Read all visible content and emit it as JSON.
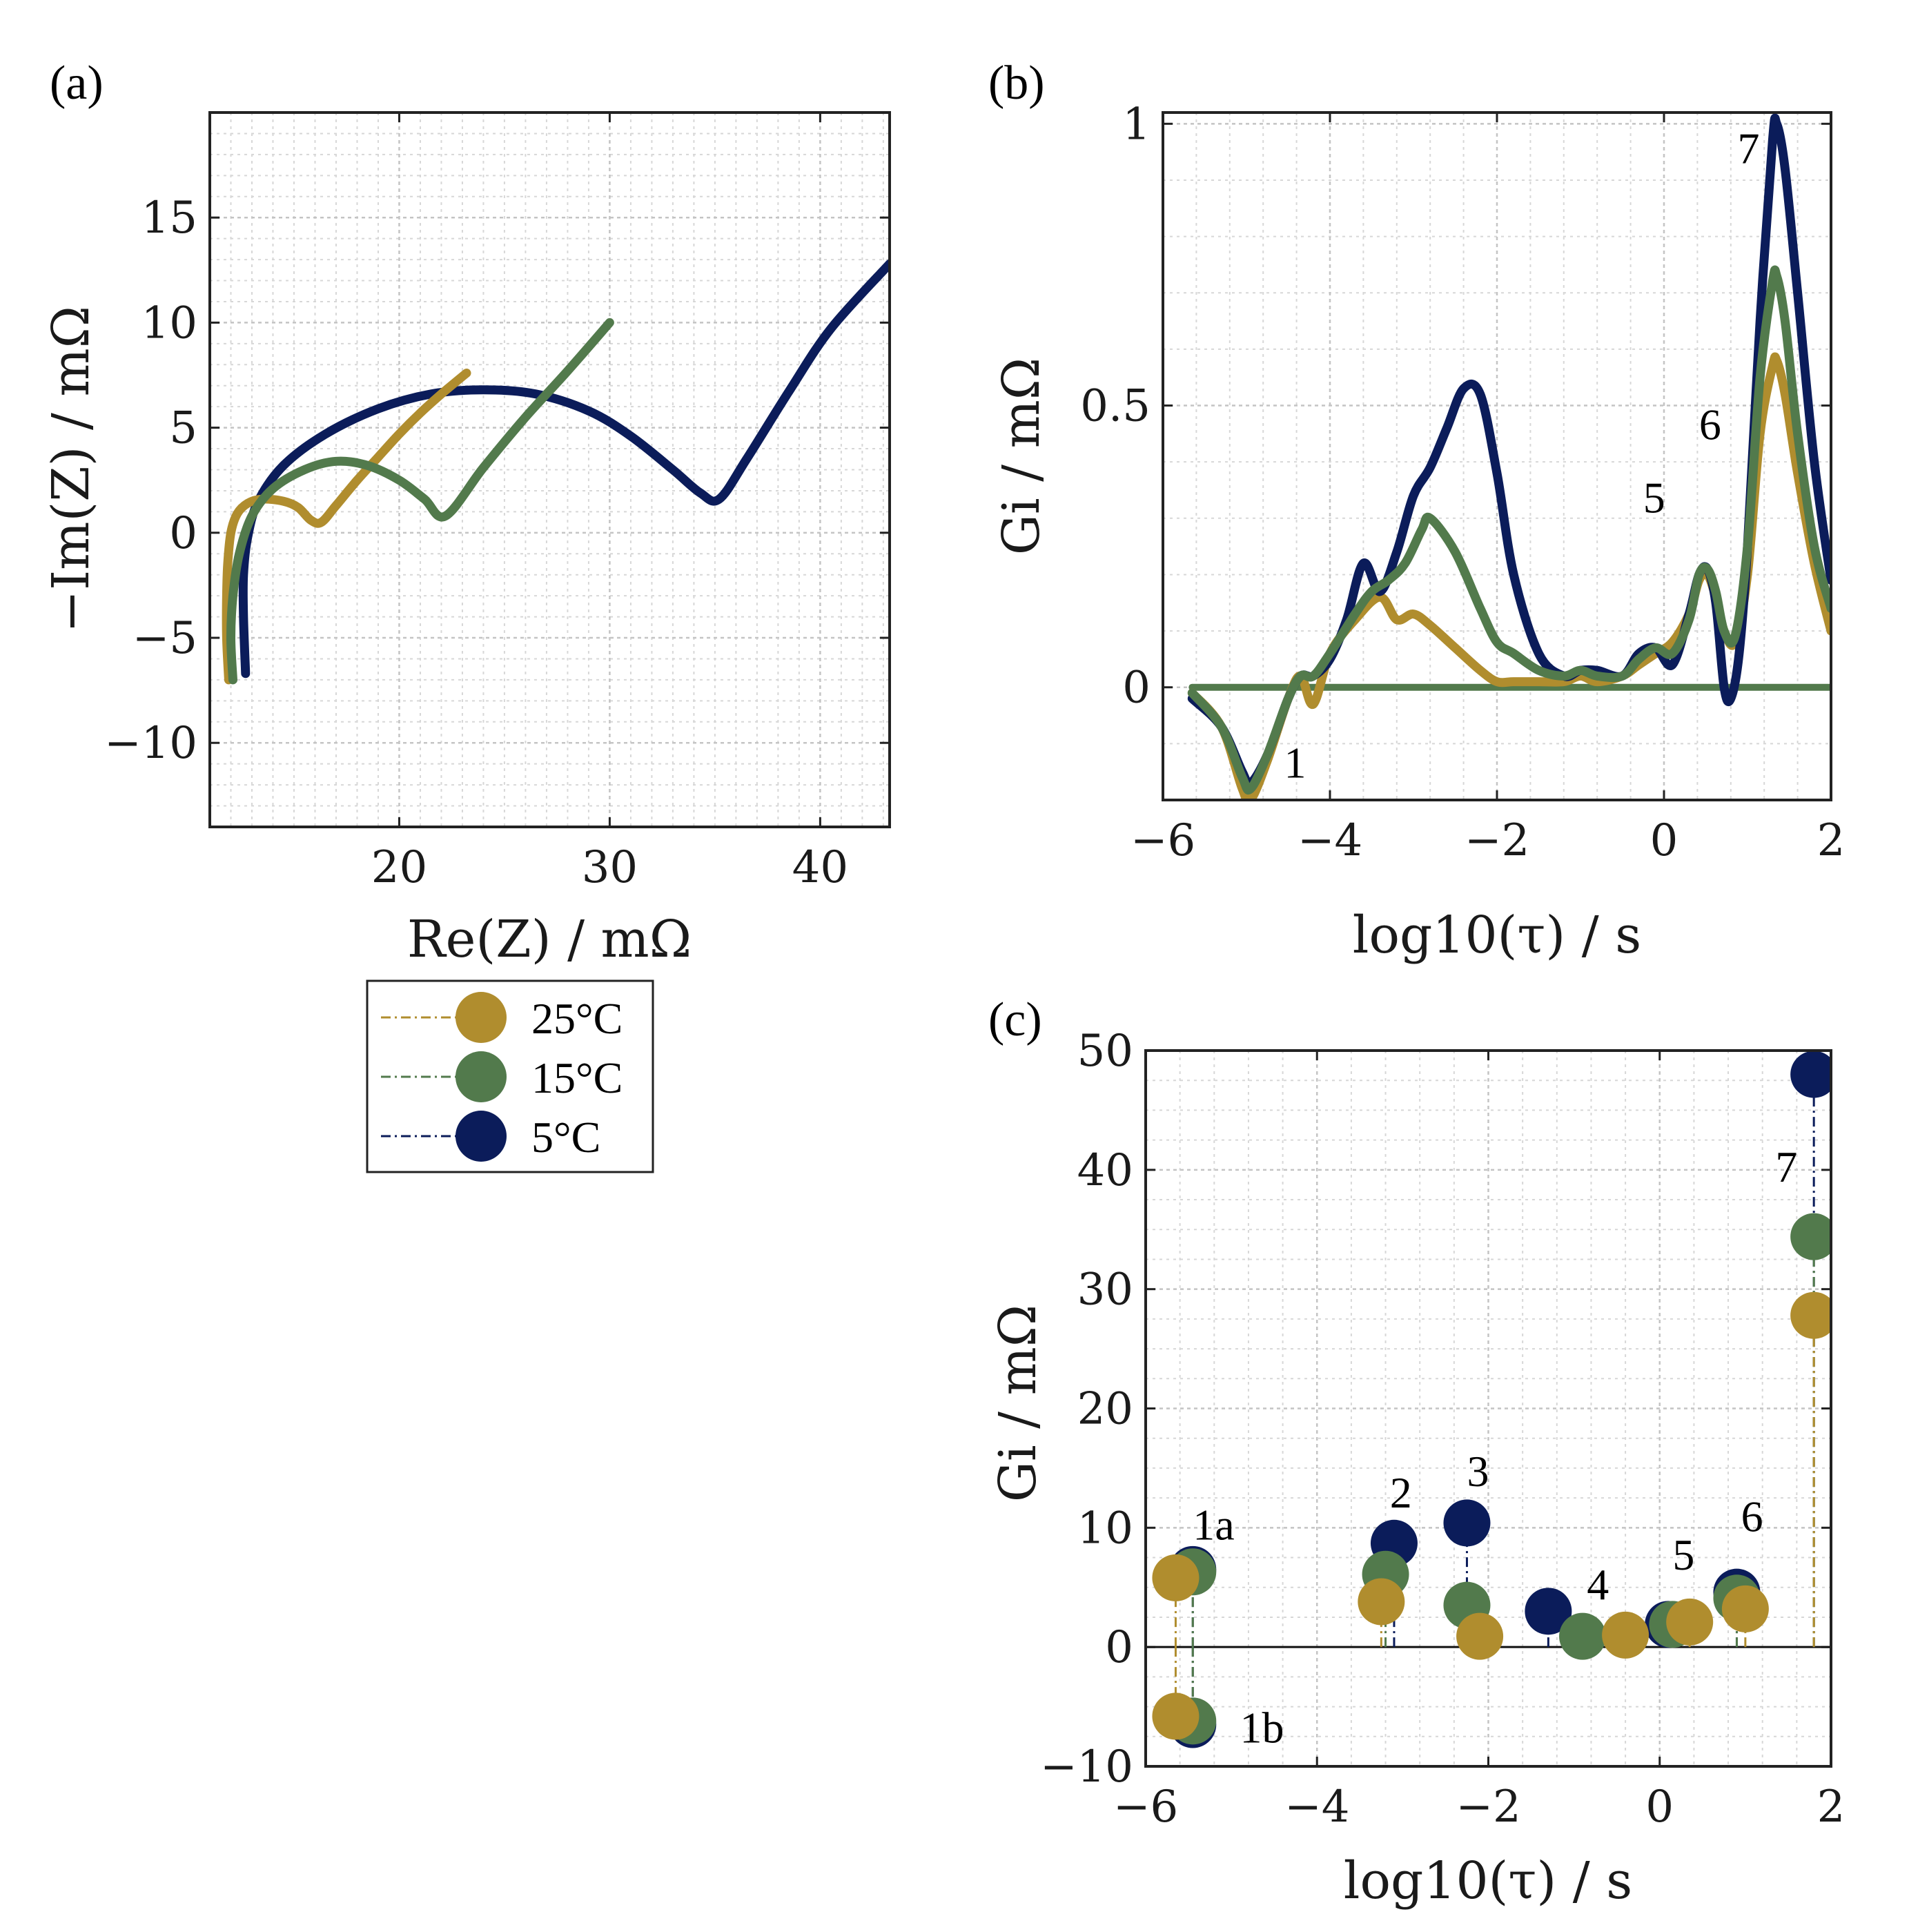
{
  "colors": {
    "t25": "#B08D2E",
    "t15": "#527A4C",
    "t5": "#0B1C5A"
  },
  "legend": {
    "items": [
      {
        "key": "t25",
        "label": "25°C"
      },
      {
        "key": "t15",
        "label": "15°C"
      },
      {
        "key": "t5",
        "label": "5°C"
      }
    ]
  },
  "chart_data": [
    {
      "id": "a",
      "panel_label": "(a)",
      "type": "line",
      "xlabel": "Re(Z) / mΩ",
      "ylabel": "−Im(Z) / mΩ",
      "xlim": [
        11,
        43.3
      ],
      "ylim": [
        -14,
        20
      ],
      "xticks": [
        20,
        30,
        40
      ],
      "xticklabels": [
        "20",
        "30",
        "40"
      ],
      "yticks": [
        -10,
        -5,
        0,
        5,
        10,
        15
      ],
      "yticklabels": [
        "−10",
        "−5",
        "0",
        "5",
        "10",
        "15"
      ],
      "grid": true,
      "series": [
        {
          "name": "25°C",
          "color_key": "t25",
          "x": [
            11.9,
            11.8,
            11.8,
            11.85,
            12.0,
            12.3,
            12.8,
            13.5,
            14.5,
            15.2,
            15.8,
            16.3,
            17.0,
            18.0,
            19.0,
            20.0,
            21.0,
            22.0,
            23.2
          ],
          "y": [
            -7.0,
            -5.0,
            -3.0,
            -1.5,
            0.0,
            0.9,
            1.4,
            1.6,
            1.5,
            1.2,
            0.6,
            0.5,
            1.3,
            2.5,
            3.6,
            4.7,
            5.7,
            6.6,
            7.6
          ]
        },
        {
          "name": "15°C",
          "color_key": "t15",
          "x": [
            12.1,
            12.0,
            12.1,
            12.4,
            13.0,
            14.0,
            15.5,
            17.0,
            18.5,
            20.0,
            21.2,
            22.2,
            24.0,
            26.0,
            28.0,
            30.0
          ],
          "y": [
            -7.0,
            -5.0,
            -3.0,
            -1.0,
            0.8,
            2.1,
            3.0,
            3.4,
            3.2,
            2.5,
            1.6,
            0.8,
            3.1,
            5.5,
            7.7,
            10.0
          ]
        },
        {
          "name": "5°C",
          "color_key": "t5",
          "x": [
            12.7,
            12.6,
            12.6,
            12.8,
            13.3,
            14.5,
            16.5,
            19.0,
            21.5,
            24.0,
            26.5,
            29.0,
            31.0,
            33.0,
            34.3,
            35.2,
            36.5,
            38.5,
            40.5,
            43.3
          ],
          "y": [
            -6.7,
            -4.0,
            -2.0,
            -0.2,
            1.5,
            3.2,
            4.7,
            5.9,
            6.6,
            6.8,
            6.6,
            5.8,
            4.6,
            3.0,
            1.9,
            1.6,
            3.5,
            6.7,
            9.7,
            12.8
          ]
        }
      ]
    },
    {
      "id": "b",
      "panel_label": "(b)",
      "type": "line",
      "xlabel": "log10(τ) / s",
      "ylabel": "Gi / mΩ",
      "xlim": [
        -6,
        2
      ],
      "ylim": [
        -0.2,
        1.02
      ],
      "xticks": [
        -6,
        -4,
        -2,
        0,
        2
      ],
      "xticklabels": [
        "−6",
        "−4",
        "−2",
        "0",
        "2"
      ],
      "yticks": [
        0,
        0.5,
        1
      ],
      "yticklabels": [
        "0",
        "0.5",
        "1"
      ],
      "grid": true,
      "annotations": [
        {
          "text": "1",
          "x": -4.55,
          "y": -0.16
        },
        {
          "text": "5",
          "x": -0.25,
          "y": 0.31
        },
        {
          "text": "6",
          "x": 0.42,
          "y": 0.44
        },
        {
          "text": "7",
          "x": 0.88,
          "y": 0.93
        }
      ],
      "series": [
        {
          "name": "25°C",
          "color_key": "t25",
          "x": [
            -5.65,
            -5.3,
            -5.05,
            -4.95,
            -4.75,
            -4.5,
            -4.35,
            -4.2,
            -4.0,
            -3.7,
            -3.4,
            -3.2,
            -3.0,
            -2.8,
            -2.5,
            -2.2,
            -2.0,
            -1.8,
            -1.5,
            -1.2,
            -1.0,
            -0.8,
            -0.5,
            -0.3,
            -0.1,
            0.1,
            0.3,
            0.42,
            0.52,
            0.62,
            0.72,
            0.85,
            1.0,
            1.15,
            1.3,
            1.35,
            1.45,
            1.6,
            1.8,
            2.0
          ],
          "y": [
            -0.01,
            -0.07,
            -0.18,
            -0.2,
            -0.13,
            -0.02,
            0.02,
            -0.03,
            0.06,
            0.12,
            0.16,
            0.12,
            0.13,
            0.11,
            0.07,
            0.03,
            0.01,
            0.01,
            0.01,
            0.01,
            0.02,
            0.01,
            0.02,
            0.04,
            0.06,
            0.08,
            0.13,
            0.19,
            0.2,
            0.16,
            0.1,
            0.08,
            0.2,
            0.45,
            0.57,
            0.58,
            0.52,
            0.38,
            0.22,
            0.1
          ]
        },
        {
          "name": "15°C",
          "color_key": "t15",
          "x": [
            -5.65,
            -5.3,
            -5.05,
            -4.95,
            -4.75,
            -4.5,
            -4.35,
            -4.2,
            -4.0,
            -3.7,
            -3.5,
            -3.3,
            -3.1,
            -2.9,
            -2.8,
            -2.5,
            -2.2,
            -2.0,
            -1.8,
            -1.5,
            -1.2,
            -1.0,
            -0.8,
            -0.5,
            -0.3,
            -0.1,
            0.1,
            0.3,
            0.42,
            0.52,
            0.62,
            0.72,
            0.85,
            1.0,
            1.15,
            1.3,
            1.35,
            1.45,
            1.6,
            1.8,
            2.0
          ],
          "y": [
            -0.01,
            -0.07,
            -0.16,
            -0.18,
            -0.12,
            -0.02,
            0.02,
            0.02,
            0.06,
            0.13,
            0.17,
            0.19,
            0.22,
            0.28,
            0.3,
            0.24,
            0.14,
            0.08,
            0.06,
            0.03,
            0.02,
            0.03,
            0.02,
            0.02,
            0.05,
            0.07,
            0.06,
            0.12,
            0.2,
            0.21,
            0.17,
            0.1,
            0.09,
            0.25,
            0.55,
            0.72,
            0.73,
            0.65,
            0.45,
            0.25,
            0.14
          ]
        },
        {
          "name": "5°C",
          "color_key": "t5",
          "x": [
            -5.65,
            -5.3,
            -5.05,
            -4.95,
            -4.75,
            -4.5,
            -4.35,
            -4.2,
            -4.0,
            -3.8,
            -3.6,
            -3.4,
            -3.2,
            -3.0,
            -2.8,
            -2.6,
            -2.4,
            -2.2,
            -2.0,
            -1.8,
            -1.5,
            -1.2,
            -1.0,
            -0.8,
            -0.5,
            -0.3,
            -0.1,
            0.1,
            0.3,
            0.42,
            0.52,
            0.62,
            0.72,
            0.8,
            0.9,
            1.0,
            1.15,
            1.3,
            1.35,
            1.45,
            1.6,
            1.8,
            2.0
          ],
          "y": [
            -0.02,
            -0.07,
            -0.15,
            -0.17,
            -0.12,
            -0.02,
            0.02,
            0.02,
            0.05,
            0.12,
            0.22,
            0.17,
            0.24,
            0.34,
            0.39,
            0.46,
            0.53,
            0.52,
            0.38,
            0.2,
            0.06,
            0.02,
            0.03,
            0.03,
            0.02,
            0.06,
            0.07,
            0.04,
            0.13,
            0.2,
            0.21,
            0.15,
            0.0,
            -0.02,
            0.06,
            0.25,
            0.65,
            0.97,
            1.0,
            0.92,
            0.7,
            0.4,
            0.19
          ]
        },
        {
          "name": "baseline",
          "color_key": "t15",
          "x": [
            -5.65,
            2.0
          ],
          "y": [
            0.0,
            0.0
          ]
        }
      ]
    },
    {
      "id": "c",
      "panel_label": "(c)",
      "type": "scatter",
      "xlabel": "log10(τ) / s",
      "ylabel": "Gi / mΩ",
      "xlim": [
        -6,
        2
      ],
      "ylim": [
        -10,
        50
      ],
      "xticks": [
        -6,
        -4,
        -2,
        0,
        2
      ],
      "xticklabels": [
        "−6",
        "−4",
        "−2",
        "0",
        "2"
      ],
      "yticks": [
        -10,
        0,
        10,
        20,
        30,
        40,
        50
      ],
      "yticklabels": [
        "−10",
        "0",
        "10",
        "20",
        "30",
        "40",
        "50"
      ],
      "grid": true,
      "annotations": [
        {
          "text": "1a",
          "x": -5.45,
          "y": 9.0
        },
        {
          "text": "1b",
          "x": -4.9,
          "y": -8.0
        },
        {
          "text": "2",
          "x": -3.15,
          "y": 11.7
        },
        {
          "text": "3",
          "x": -2.25,
          "y": 13.5
        },
        {
          "text": "4",
          "x": -0.85,
          "y": 4.0
        },
        {
          "text": "5",
          "x": 0.15,
          "y": 6.5
        },
        {
          "text": "6",
          "x": 0.95,
          "y": 9.7
        },
        {
          "text": "7",
          "x": 1.35,
          "y": 39.0
        }
      ],
      "series": [
        {
          "name": "5°C",
          "color_key": "t5",
          "x": [
            -5.45,
            -5.45,
            -3.1,
            -2.25,
            -1.3,
            0.1,
            0.9,
            1.8
          ],
          "y": [
            6.5,
            -6.5,
            8.7,
            10.4,
            3.0,
            1.9,
            4.6,
            48.0
          ]
        },
        {
          "name": "15°C",
          "color_key": "t15",
          "x": [
            -5.45,
            -5.45,
            -3.2,
            -2.25,
            -0.9,
            0.15,
            0.9,
            1.8
          ],
          "y": [
            6.3,
            -6.2,
            6.1,
            3.5,
            0.9,
            1.9,
            4.1,
            34.4
          ]
        },
        {
          "name": "25°C",
          "color_key": "t25",
          "x": [
            -5.65,
            -5.65,
            -3.25,
            -2.1,
            -0.4,
            0.35,
            1.0,
            1.8
          ],
          "y": [
            5.8,
            -5.8,
            3.8,
            0.9,
            1.0,
            2.1,
            3.2,
            27.8
          ]
        }
      ]
    }
  ]
}
